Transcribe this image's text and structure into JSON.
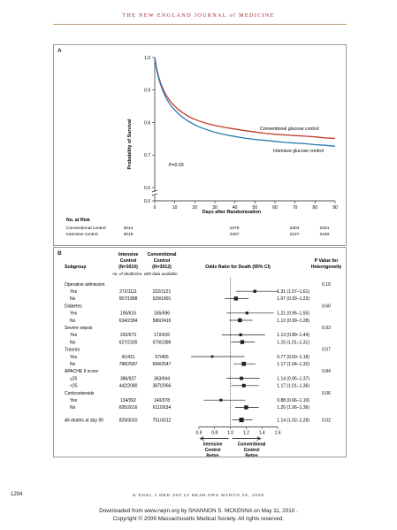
{
  "journal_header": "THE NEW ENGLAND JOURNAL of MEDICINE",
  "panel_a": {
    "label": "A",
    "chart_data": {
      "type": "line",
      "ylabel": "Probability of Survival",
      "xlabel": "Days after Randomization",
      "xlim": [
        0,
        90
      ],
      "ylim": [
        0.6,
        1.0
      ],
      "x_ticks": [
        0,
        10,
        20,
        30,
        40,
        50,
        60,
        70,
        80,
        90
      ],
      "y_ticks": [
        "0.0",
        "0.6",
        "0.7",
        "0.8",
        "0.9",
        "1.0"
      ],
      "axis_break": true,
      "p_value": "P=0.03",
      "series": [
        {
          "name": "Conventional glucose control",
          "color": "#c0392b",
          "x": [
            0,
            1,
            2,
            3,
            4,
            5,
            6,
            7,
            8,
            9,
            10,
            12,
            14,
            16,
            18,
            20,
            22,
            25,
            28,
            30,
            35,
            40,
            45,
            50,
            55,
            60,
            65,
            70,
            75,
            80,
            85,
            90
          ],
          "y": [
            1.0,
            0.965,
            0.94,
            0.92,
            0.905,
            0.892,
            0.881,
            0.872,
            0.864,
            0.857,
            0.85,
            0.839,
            0.83,
            0.822,
            0.815,
            0.81,
            0.805,
            0.799,
            0.794,
            0.791,
            0.785,
            0.78,
            0.775,
            0.771,
            0.767,
            0.764,
            0.762,
            0.76,
            0.758,
            0.756,
            0.753,
            0.751
          ]
        },
        {
          "name": "Intensive glucose control",
          "color": "#2a7ab0",
          "x": [
            0,
            1,
            2,
            3,
            4,
            5,
            6,
            7,
            8,
            9,
            10,
            12,
            14,
            16,
            18,
            20,
            22,
            25,
            28,
            30,
            35,
            40,
            45,
            50,
            55,
            60,
            65,
            70,
            75,
            80,
            85,
            90
          ],
          "y": [
            1.0,
            0.96,
            0.935,
            0.915,
            0.898,
            0.884,
            0.872,
            0.862,
            0.853,
            0.845,
            0.838,
            0.826,
            0.816,
            0.807,
            0.8,
            0.793,
            0.787,
            0.78,
            0.774,
            0.77,
            0.763,
            0.757,
            0.752,
            0.748,
            0.745,
            0.742,
            0.739,
            0.737,
            0.735,
            0.732,
            0.73,
            0.727
          ]
        }
      ]
    },
    "at_risk": {
      "title": "No. at Risk",
      "rows": [
        {
          "label": "Conventional control",
          "values": [
            "3014",
            "2379",
            "2304",
            "2261"
          ]
        },
        {
          "label": "Intensive control",
          "values": [
            "3016",
            "2337",
            "2227",
            "2182"
          ]
        }
      ]
    }
  },
  "panel_b": {
    "label": "B",
    "headers": {
      "subgroup": "Subgroup",
      "intensive": [
        "Intensive",
        "Control",
        "(N=3010)"
      ],
      "conventional": [
        "Conventional",
        "Control",
        "(N=3012)"
      ],
      "or": "Odds Ratio for Death (95% CI)",
      "p": [
        "P Value for",
        "Heterogeneity"
      ],
      "sub": "no. of deaths/no. with data available"
    },
    "chart_data": {
      "type": "forest",
      "x_ticks": [
        "0.6",
        "0.8",
        "1.0",
        "1.2",
        "1.4",
        "1.6"
      ],
      "xlim": [
        0.5,
        1.7
      ],
      "reference": 1.0,
      "left_label": [
        "Intensive",
        "Control",
        "Better"
      ],
      "right_label": [
        "Conventional",
        "Control",
        "Better"
      ],
      "rows": [
        {
          "label": "Operative admission",
          "group": true,
          "p": "0.10"
        },
        {
          "label": "Yes",
          "intensive": "272/1111",
          "conventional": "222/1121",
          "or": 1.31,
          "lo": 1.07,
          "hi": 1.61,
          "ci": "1.31 (1.07–1.61)",
          "w": 0.6
        },
        {
          "label": "No",
          "intensive": "557/1898",
          "conventional": "529/1891",
          "or": 1.07,
          "lo": 0.93,
          "hi": 1.23,
          "ci": "1.07 (0.93–1.23)",
          "w": 1.0
        },
        {
          "label": "Diabetes",
          "group": true,
          "p": "0.60"
        },
        {
          "label": "Yes",
          "intensive": "195/615",
          "conventional": "165/596",
          "or": 1.21,
          "lo": 0.95,
          "hi": 1.55,
          "ci": "1.21 (0.95–1.55)",
          "w": 0.5
        },
        {
          "label": "No",
          "intensive": "634/2394",
          "conventional": "586/2416",
          "or": 1.12,
          "lo": 0.99,
          "hi": 1.28,
          "ci": "1.12 (0.99–1.28)",
          "w": 1.0
        },
        {
          "label": "Severe sepsis",
          "group": true,
          "p": "0.93"
        },
        {
          "label": "Yes",
          "intensive": "202/673",
          "conventional": "172/626",
          "or": 1.13,
          "lo": 0.89,
          "hi": 1.44,
          "ci": "1.13 (0.89–1.44)",
          "w": 0.55
        },
        {
          "label": "No",
          "intensive": "627/2335",
          "conventional": "579/2386",
          "or": 1.15,
          "lo": 1.01,
          "hi": 1.31,
          "ci": "1.15 (1.01–1.31)",
          "w": 1.0
        },
        {
          "label": "Trauma",
          "group": true,
          "p": "0.07"
        },
        {
          "label": "Yes",
          "intensive": "41/421",
          "conventional": "57/465",
          "or": 0.77,
          "lo": 0.5,
          "hi": 1.18,
          "ci": "0.77 (0.50–1.18)",
          "w": 0.3
        },
        {
          "label": "No",
          "intensive": "788/2587",
          "conventional": "694/2547",
          "or": 1.17,
          "lo": 1.04,
          "hi": 1.32,
          "ci": "1.17 (1.04–1.32)",
          "w": 1.1
        },
        {
          "label": "APACHE II score",
          "group": true,
          "p": "0.84"
        },
        {
          "label": "≥25",
          "intensive": "386/927",
          "conventional": "363/944",
          "or": 1.14,
          "lo": 0.95,
          "hi": 1.37,
          "ci": "1.14 (0.95–1.37)",
          "w": 0.75
        },
        {
          "label": "<25",
          "intensive": "442/2080",
          "conventional": "387/2066",
          "or": 1.17,
          "lo": 1.01,
          "hi": 1.36,
          "ci": "1.17 (1.01–1.36)",
          "w": 0.85
        },
        {
          "label": "Corticosteroids",
          "group": true,
          "p": "0.06"
        },
        {
          "label": "Yes",
          "intensive": "134/392",
          "conventional": "140/378",
          "or": 0.88,
          "lo": 0.66,
          "hi": 1.19,
          "ci": "0.88 (0.66–1.19)",
          "w": 0.45
        },
        {
          "label": "No",
          "intensive": "695/2616",
          "conventional": "611/2634",
          "or": 1.2,
          "lo": 1.06,
          "hi": 1.36,
          "ci": "1.20 (1.06–1.36)",
          "w": 1.0
        },
        {
          "label": "All deaths at day 90",
          "overall": true,
          "intensive": "829/3010",
          "conventional": "751/3012",
          "or": 1.14,
          "lo": 1.02,
          "hi": 1.28,
          "ci": "1.14 (1.02–1.28)",
          "p": "0.02",
          "w": 1.3
        }
      ]
    }
  },
  "footer": {
    "page_number": "1294",
    "citation": "N ENGL J MED 360;13   NEJM.ORG   MARCH 26, 2009",
    "download_line1": "Downloaded from www.nejm.org by SHANNON S. MCKENNA on May 11, 2010 .",
    "download_line2": "Copyright © 2009 Massachusetts Medical Society. All rights reserved."
  }
}
